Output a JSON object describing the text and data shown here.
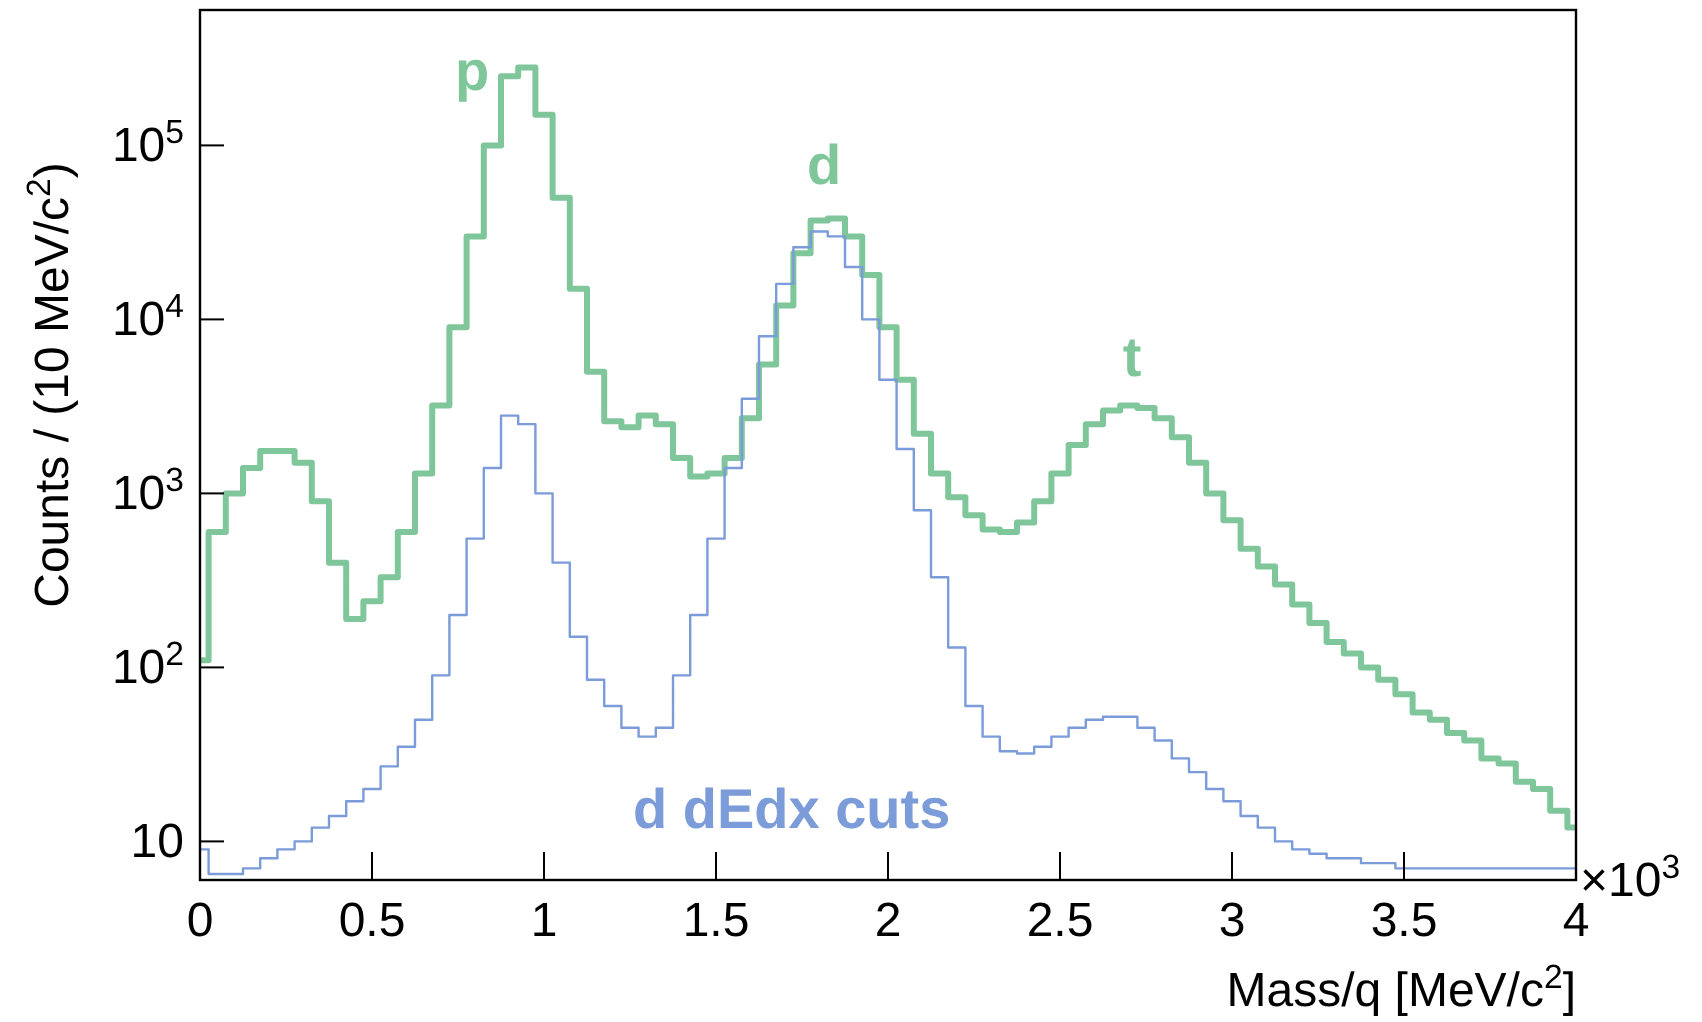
{
  "chart_data": {
    "type": "step",
    "xlabel": "Mass/q [MeV/c$^{2}$]",
    "ylabel": "Counts / (10 MeV/c$^{2}$)",
    "log": "y",
    "xlim": [
      0,
      4
    ],
    "xticks": [
      0,
      0.5,
      1,
      1.5,
      2,
      2.5,
      3,
      3.5,
      4
    ],
    "ylim": [
      6,
      600000
    ],
    "yticks": [
      10,
      {
        "value": 100,
        "label": "10$^{2}$"
      },
      {
        "value": 1000,
        "label": "10$^{3}$"
      },
      {
        "value": 10000,
        "label": "10$^{4}$"
      },
      {
        "value": 100000,
        "label": "10$^{5}$"
      }
    ],
    "x": [
      0,
      0.05,
      0.1,
      0.15,
      0.2,
      0.25,
      0.3,
      0.35,
      0.4,
      0.45,
      0.5,
      0.55,
      0.6,
      0.65,
      0.7,
      0.75,
      0.8,
      0.85,
      0.9,
      0.95,
      1,
      1.05,
      1.1,
      1.15,
      1.2,
      1.25,
      1.3,
      1.35,
      1.4,
      1.45,
      1.5,
      1.55,
      1.6,
      1.65,
      1.7,
      1.75,
      1.8,
      1.85,
      1.9,
      1.95,
      2,
      2.05,
      2.1,
      2.15,
      2.2,
      2.25,
      2.3,
      2.35,
      2.4,
      2.45,
      2.5,
      2.55,
      2.6,
      2.65,
      2.7,
      2.75,
      2.8,
      2.85,
      2.9,
      2.95,
      3,
      3.05,
      3.1,
      3.15,
      3.2,
      3.25,
      3.3,
      3.35,
      3.4,
      3.45,
      3.5,
      3.55,
      3.6,
      3.65,
      3.7,
      3.75,
      3.8,
      3.85,
      3.9,
      3.95,
      4
    ],
    "series": [
      {
        "color": "#7fc69b",
        "values": [
          110,
          600,
          1000,
          1400,
          1750,
          1750,
          1500,
          900,
          400,
          190,
          240,
          330,
          600,
          1300,
          3200,
          9000,
          30000,
          100000,
          250000,
          280000,
          150000,
          50000,
          15000,
          5000,
          2600,
          2400,
          2800,
          2500,
          1600,
          1250,
          1300,
          1600,
          2700,
          5500,
          12000,
          24000,
          37000,
          38000,
          30000,
          18000,
          9000,
          4500,
          2200,
          1300,
          950,
          750,
          620,
          600,
          680,
          900,
          1300,
          1900,
          2500,
          3000,
          3200,
          3100,
          2700,
          2100,
          1500,
          1000,
          700,
          480,
          380,
          300,
          230,
          180,
          140,
          120,
          100,
          85,
          70,
          55,
          50,
          42,
          38,
          30,
          28,
          22,
          20,
          15,
          12
        ]
      },
      {
        "name": "d dEdx cuts",
        "color": "#7b9bd9",
        "values": [
          9,
          6.5,
          6.5,
          7,
          8,
          9,
          10,
          12,
          14,
          17,
          20,
          27,
          35,
          50,
          90,
          200,
          550,
          1400,
          2800,
          2500,
          1000,
          400,
          150,
          85,
          60,
          45,
          40,
          45,
          90,
          200,
          550,
          1400,
          3500,
          8000,
          16000,
          26000,
          32000,
          30000,
          20000,
          10000,
          4500,
          1800,
          800,
          330,
          130,
          60,
          40,
          33,
          32,
          35,
          40,
          45,
          50,
          52,
          52,
          45,
          38,
          30,
          25,
          20,
          17,
          14,
          12,
          10,
          9,
          8.5,
          8,
          8,
          7.5,
          7.5,
          7,
          7,
          7,
          7,
          7,
          7,
          7,
          7,
          7,
          7,
          7
        ]
      }
    ],
    "annotations": [
      "p",
      "d",
      "t",
      "×10$^{3}$"
    ]
  }
}
